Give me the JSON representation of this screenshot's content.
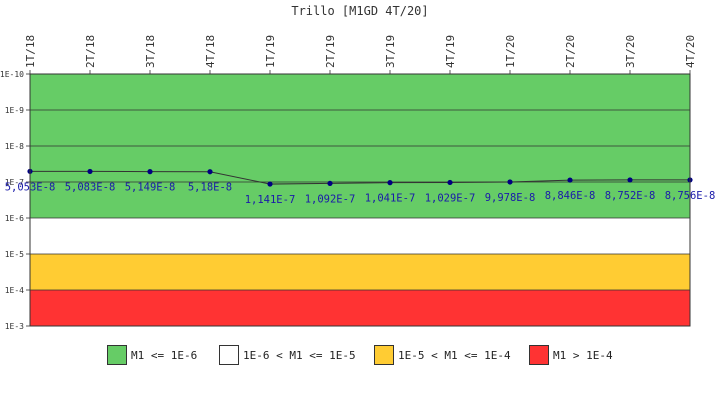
{
  "chart_data": {
    "type": "line",
    "title": "Trillo [M1GD 4T/20]",
    "categories": [
      "1T/18",
      "2T/18",
      "3T/18",
      "4T/18",
      "1T/19",
      "2T/19",
      "3T/19",
      "4T/19",
      "1T/20",
      "2T/20",
      "3T/20",
      "4T/20"
    ],
    "series": [
      {
        "values": [
          5.053e-08,
          5.083e-08,
          5.149e-08,
          5.18e-08,
          1.141e-07,
          1.092e-07,
          1.041e-07,
          1.029e-07,
          9.978e-08,
          8.846e-08,
          8.752e-08,
          8.756e-08
        ],
        "labels": [
          "5,053E-8",
          "5,083E-8",
          "5,149E-8",
          "5,18E-8",
          "1,141E-7",
          "1,092E-7",
          "1,041E-7",
          "1,029E-7",
          "9,978E-8",
          "8,846E-8",
          "8,752E-8",
          "8,756E-8"
        ],
        "color": "#000080"
      }
    ],
    "y_scale": "log",
    "y_reversed": true,
    "ylim": [
      1e-10,
      0.001
    ],
    "y_ticks": [
      "1E-10",
      "1E-9",
      "1E-8",
      "1E-7",
      "1E-6",
      "1E-5",
      "1E-4",
      "1E-3"
    ],
    "bands": [
      {
        "from": 1e-10,
        "to": 1e-06,
        "color": "#66cc66"
      },
      {
        "from": 1e-06,
        "to": 1e-05,
        "color": "#ffffff"
      },
      {
        "from": 1e-05,
        "to": 0.0001,
        "color": "#ffcc33"
      },
      {
        "from": 0.0001,
        "to": 0.001,
        "color": "#ff3333"
      }
    ],
    "legend": {
      "position": "bottom",
      "items": [
        {
          "label": "M1 <= 1E-6",
          "color": "#66cc66"
        },
        {
          "label": "1E-6 < M1 <= 1E-5",
          "color": "#ffffff"
        },
        {
          "label": "1E-5 < M1 <= 1E-4",
          "color": "#ffcc33"
        },
        {
          "label": "M1 > 1E-4",
          "color": "#ff3333"
        }
      ]
    }
  }
}
